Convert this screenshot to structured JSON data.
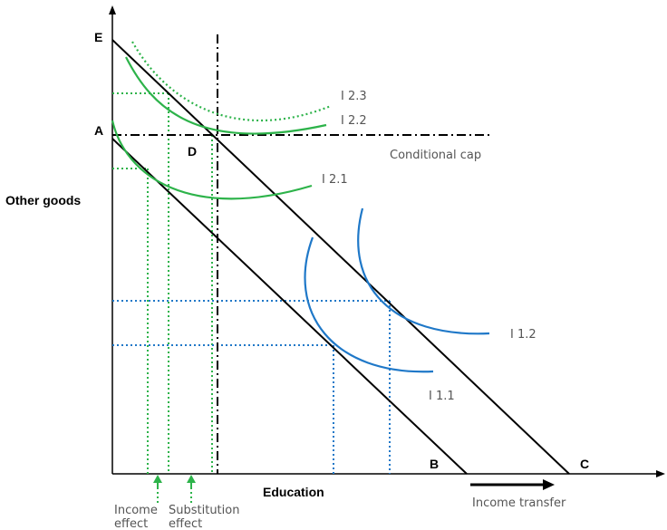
{
  "axes": {
    "y_label": "Other goods",
    "x_label": "Education"
  },
  "points": {
    "e": "E",
    "a": "A",
    "d": "D",
    "b": "B",
    "c": "C"
  },
  "cap_label": "Conditional cap",
  "curves": {
    "i23": "I 2.3",
    "i22": "I 2.2",
    "i21": "I 2.1",
    "i12": "I 1.2",
    "i11": "I 1.1"
  },
  "effects": {
    "income_line1": "Income",
    "income_line2": "effect",
    "substitution_line1": "Substitution",
    "substitution_line2": "effect"
  },
  "income_transfer_label": "Income transfer",
  "colors": {
    "green": "#2db34a",
    "blue": "#1f78c8",
    "black": "#000000"
  }
}
